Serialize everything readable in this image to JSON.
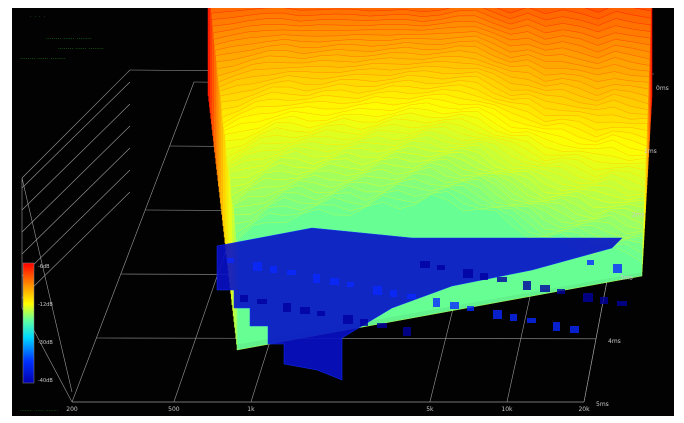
{
  "header": {
    "corner_mark": "· · · ·",
    "line1": "........  ......  ........",
    "line2": "........  ......  ........",
    "line3": "........  ......  ........",
    "footer": "........  ......  ........"
  },
  "chart_data": {
    "type": "waterfall-3d",
    "title": "",
    "xlabel": "",
    "ylabel": "",
    "x_ticks": [
      "200",
      "500",
      "1k",
      "5k",
      "10k",
      "20k"
    ],
    "time_ticks": [
      "0ms",
      "1ms",
      "2ms",
      "3ms",
      "4ms",
      "5ms"
    ],
    "colorbar_ticks": [
      "-6dB",
      "-12dB",
      "-30dB",
      "-40dB"
    ],
    "colorbar_range_db": [
      -40,
      0
    ],
    "time_range_ms": [
      0,
      5
    ],
    "freq_range_hz": [
      200,
      20000
    ],
    "colors": {
      "background": "#020202",
      "grid": "#9a9a9a",
      "header_text": "#1f8f1f",
      "tick_text": "#c8c8c8",
      "colormap": [
        "#0000b0",
        "#0020ff",
        "#00a8ff",
        "#00ffe8",
        "#80ff80",
        "#ffff00",
        "#ff9000",
        "#ff1000"
      ]
    },
    "front_slice_level_db": [
      -22,
      -18,
      -14,
      -11,
      -10,
      -10,
      -9,
      -8,
      -8,
      -6,
      -5,
      -4,
      -3,
      -4,
      -6,
      -8,
      -12,
      -16,
      -20,
      -24,
      -26,
      -28,
      -30,
      -30,
      -32,
      -33
    ],
    "back_slice_level_db": [
      -1,
      -1,
      -1,
      -1,
      -1,
      -2,
      -2,
      -2,
      -2,
      -3,
      -3,
      -3,
      -4,
      -3,
      -1,
      0,
      -2,
      -4,
      -1,
      -3,
      -1,
      -2,
      -4,
      -1,
      -2,
      -3
    ]
  }
}
